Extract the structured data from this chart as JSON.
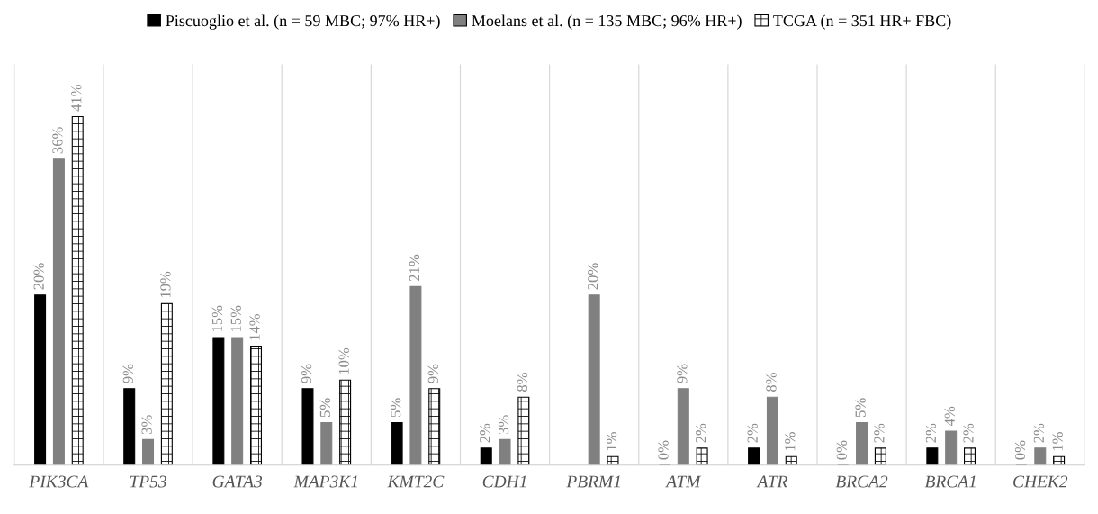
{
  "chart_data": {
    "type": "bar",
    "categories": [
      "PIK3CA",
      "TP53",
      "GATA3",
      "MAP3K1",
      "KMT2C",
      "CDH1",
      "PBRM1",
      "ATM",
      "ATR",
      "BRCA2",
      "BRCA1",
      "CHEK2"
    ],
    "series": [
      {
        "name": "Piscuoglio et al. (n = 59 MBC; 97% HR+)",
        "color": "#000000",
        "values": [
          20,
          9,
          15,
          9,
          5,
          2,
          null,
          0,
          2,
          0,
          2,
          0
        ],
        "value_labels": [
          "20%",
          "9%",
          "15%",
          "9%",
          "5%",
          "2%",
          null,
          "0%",
          "2%",
          "0%",
          "2%",
          "0%"
        ]
      },
      {
        "name": "Moelans et al. (n = 135 MBC; 96% HR+)",
        "color": "#808080",
        "values": [
          36,
          3,
          15,
          5,
          21,
          3,
          20,
          9,
          8,
          5,
          4,
          2
        ],
        "value_labels": [
          "36%",
          "3%",
          "15%",
          "5%",
          "21%",
          "3%",
          "20%",
          "9%",
          "8%",
          "5%",
          "4%",
          "2%"
        ]
      },
      {
        "name": "TCGA (n = 351 HR+ FBC)",
        "color": "#000000",
        "values": [
          41,
          19,
          14,
          10,
          9,
          8,
          1,
          2,
          1,
          2,
          2,
          1
        ],
        "value_labels": [
          "41%",
          "19%",
          "14%",
          "10%",
          "9%",
          "8%",
          "1%",
          "2%",
          "1%",
          "2%",
          "2%",
          "1%"
        ]
      }
    ],
    "grid": "x",
    "legend": "top"
  }
}
